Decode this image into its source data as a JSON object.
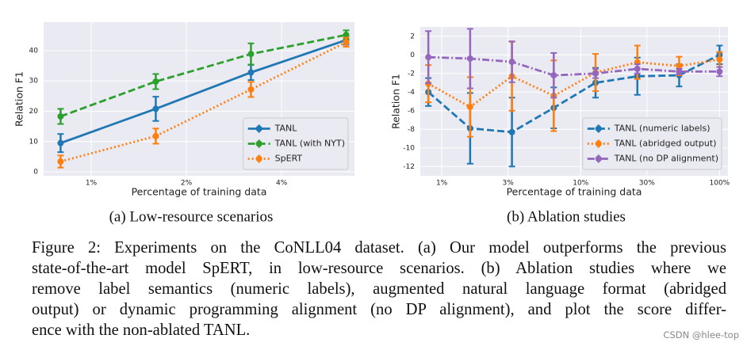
{
  "chart_data": [
    {
      "type": "line",
      "xlabel": "Percentage of training data",
      "ylabel": "Relation F1",
      "subcaption": "(a) Low-resource scenarios",
      "xscale": "log",
      "xlim": [
        0.707,
        6.8
      ],
      "xticks": [
        {
          "value": 1,
          "label": "1%"
        },
        {
          "value": 2,
          "label": "2%"
        },
        {
          "value": 4,
          "label": "4%"
        }
      ],
      "ylim": [
        -1.3,
        49.4
      ],
      "yticks": [
        0,
        10,
        20,
        30,
        40
      ],
      "grid": true,
      "legend": "lower right",
      "x": [
        0.8,
        1.6,
        3.2,
        6.4
      ],
      "series": [
        {
          "name": "TANL",
          "color": "#1f77b4",
          "linestyle": "solid",
          "values": [
            9.5,
            20.8,
            32.8,
            43.5
          ],
          "errors": [
            3,
            4,
            2.5,
            1.5
          ]
        },
        {
          "name": "TANL (with NYT)",
          "color": "#2ca02c",
          "linestyle": "dashed",
          "values": [
            18.3,
            29.8,
            38.9,
            45.2
          ],
          "errors": [
            2.5,
            2.5,
            3.5,
            1.5
          ]
        },
        {
          "name": "SpERT",
          "color": "#ff7f0e",
          "linestyle": "dotted",
          "values": [
            3.4,
            11.8,
            27.2,
            42.8
          ],
          "errors": [
            2,
            2.5,
            2.5,
            1.5
          ]
        }
      ]
    },
    {
      "type": "line",
      "xlabel": "Percentage of training data",
      "ylabel": "Relation F1",
      "subcaption": "(b) Ablation studies",
      "xscale": "log",
      "xlim": [
        0.7,
        115
      ],
      "xticks": [
        {
          "value": 1,
          "label": "1%"
        },
        {
          "value": 3,
          "label": "3%"
        },
        {
          "value": 10,
          "label": "10%"
        },
        {
          "value": 30,
          "label": "30%"
        },
        {
          "value": 100,
          "label": "100%"
        }
      ],
      "ylim": [
        -13,
        3
      ],
      "yticks": [
        -12,
        -10,
        -8,
        -6,
        -4,
        -2,
        0,
        2
      ],
      "grid": true,
      "legend": "lower right",
      "x": [
        0.8,
        1.6,
        3.2,
        6.4,
        12.8,
        25.6,
        51.2,
        100
      ],
      "series": [
        {
          "name": "TANL (numeric labels)",
          "color": "#1f77b4",
          "linestyle": "dashed",
          "values": [
            -4.0,
            -7.9,
            -8.3,
            -5.7,
            -3.0,
            -2.3,
            -2.2,
            0
          ],
          "errors": [
            1.5,
            3.8,
            3.7,
            2.2,
            1.6,
            2,
            1.2,
            1
          ]
        },
        {
          "name": "TANL (abridged output)",
          "color": "#ff7f0e",
          "linestyle": "dotted",
          "values": [
            -3.1,
            -5.6,
            -2.3,
            -4.4,
            -1.9,
            -0.8,
            -1.2,
            -0.5
          ],
          "errors": [
            2,
            3.2,
            3.7,
            3.8,
            2,
            1.8,
            1,
            0.8
          ]
        },
        {
          "name": "TANL (no DP alignment)",
          "color": "#9467bd",
          "linestyle": "dashdot",
          "values": [
            -0.25,
            -0.4,
            -0.75,
            -2.2,
            -2.0,
            -1.5,
            -1.8,
            -1.8
          ],
          "errors": [
            2.8,
            3.2,
            2.2,
            2.4,
            0.5,
            0.5,
            0.3,
            0.5
          ]
        }
      ]
    }
  ],
  "caption": {
    "lines": [
      "Figure 2: Experiments on the CoNLL04 dataset. (a) Our model outperforms the previous",
      "state-of-the-art model SpERT, in low-resource scenarios. (b) Ablation studies where we",
      "remove label semantics (numeric labels), augmented natural language format (abridged",
      "output) or dynamic programming alignment (no DP alignment), and plot the score differ-",
      "ence with the non-ablated TANL."
    ]
  },
  "watermark": "CSDN @hlee-top"
}
